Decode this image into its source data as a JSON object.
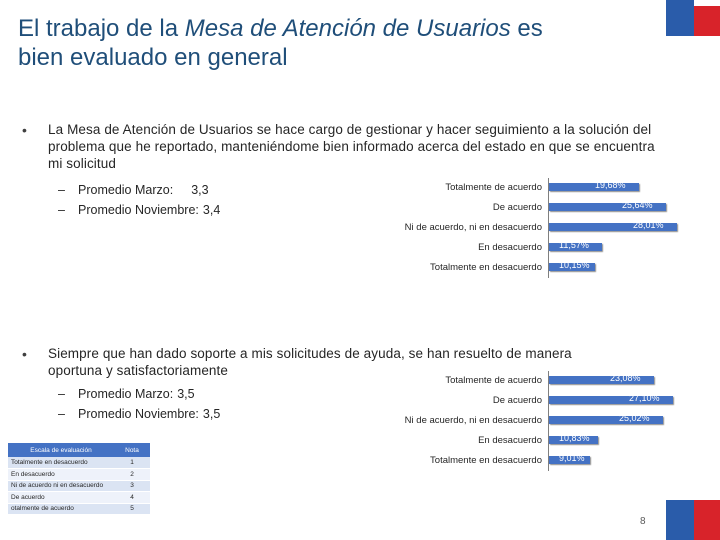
{
  "title": {
    "line1_pre": "El trabajo de la ",
    "line1_italic": "Mesa de Atención de Usuarios",
    "line1_post": " es",
    "line2": "bien evaluado en general"
  },
  "bullet_symbol": "•",
  "sections": [
    {
      "text": "La Mesa de Atención de Usuarios se hace cargo de gestionar y hacer seguimiento a la solución del problema que he reportado, manteniéndome bien informado acerca del estado en que se encuentra mi solicitud",
      "subitems": [
        {
          "dash": "–",
          "label": "Promedio Marzo:",
          "value": "3,3"
        },
        {
          "dash": "–",
          "label": "Promedio Noviembre:",
          "value": "3,4"
        }
      ]
    },
    {
      "text": "Siempre que han dado soporte a mis solicitudes de ayuda, se han resuelto de manera oportuna y satisfactoriamente",
      "subitems": [
        {
          "dash": "–",
          "label": "Promedio Marzo:",
          "value": "3,5"
        },
        {
          "dash": "–",
          "label": "Promedio Noviembre:",
          "value": "3,5"
        }
      ]
    }
  ],
  "chart_data": [
    {
      "type": "bar",
      "orientation": "horizontal",
      "categories": [
        "Totalmente de acuerdo",
        "De acuerdo",
        "Ni de acuerdo, ni en desacuerdo",
        "En desacuerdo",
        "Totalmente en desacuerdo"
      ],
      "values": [
        19.68,
        25.64,
        28.01,
        11.57,
        10.15
      ],
      "labels": [
        "19,68%",
        "25,64%",
        "28,01%",
        "11,57%",
        "10,15%"
      ],
      "xlim": [
        0,
        30
      ],
      "bar_color": "#4472c4"
    },
    {
      "type": "bar",
      "orientation": "horizontal",
      "categories": [
        "Totalmente de acuerdo",
        "De acuerdo",
        "Ni de acuerdo, ni en desacuerdo",
        "En desacuerdo",
        "Totalmente en desacuerdo"
      ],
      "values": [
        23.08,
        27.1,
        25.02,
        10.83,
        9.01
      ],
      "labels": [
        "23,08%",
        "27,10%",
        "25,02%",
        "10,83%",
        "9,01%"
      ],
      "xlim": [
        0,
        30
      ],
      "bar_color": "#4472c4"
    }
  ],
  "scale_table": {
    "headers": [
      "Escala de evaluación",
      "Nota"
    ],
    "rows": [
      [
        "Totalmente en desacuerdo",
        "1"
      ],
      [
        "En desacuerdo",
        "2"
      ],
      [
        "Ni de acuerdo ni en desacuerdo",
        "3"
      ],
      [
        "De acuerdo",
        "4"
      ],
      [
        "otalmente de acuerdo",
        "5"
      ]
    ]
  },
  "page_number": "8",
  "colors": {
    "title": "#1f4e79",
    "bar": "#4472c4",
    "flag_blue": "#2a5caa",
    "flag_red": "#d8232a"
  }
}
